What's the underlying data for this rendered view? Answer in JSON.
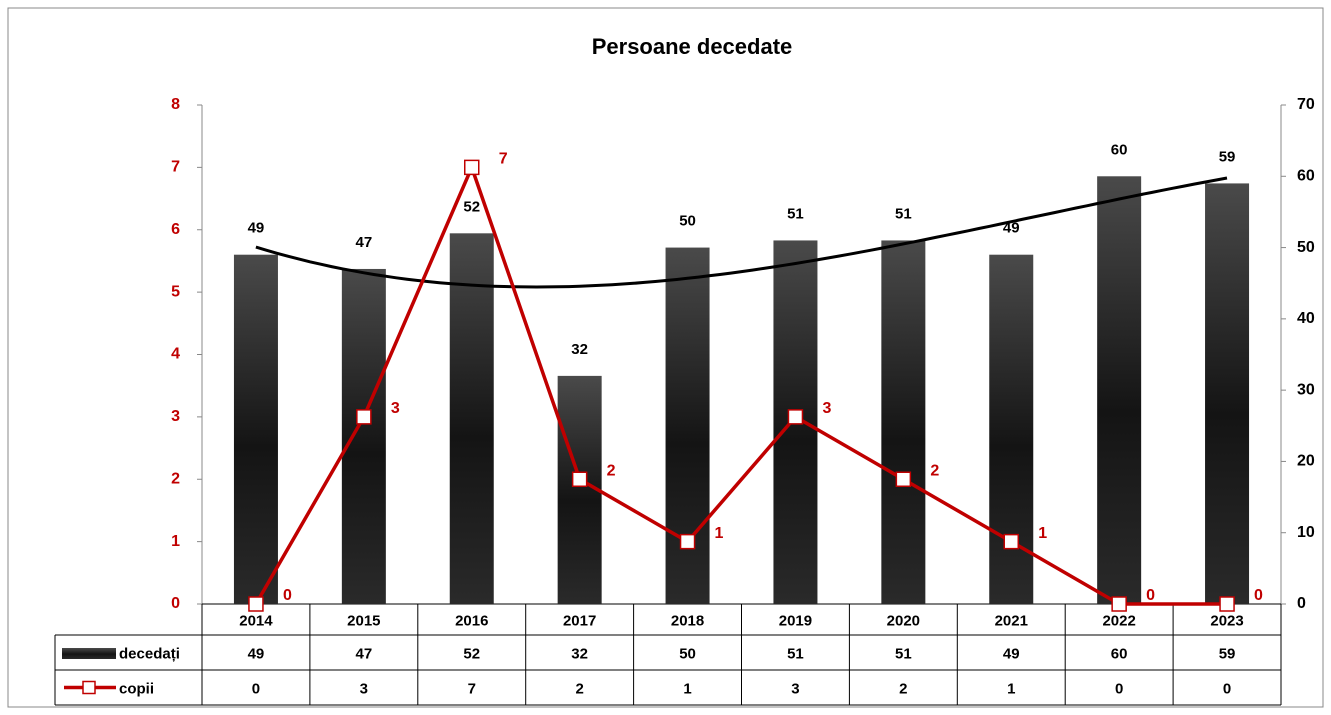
{
  "chart_data": {
    "type": "combo",
    "title": "Persoane decedate",
    "categories": [
      "2014",
      "2015",
      "2016",
      "2017",
      "2018",
      "2019",
      "2020",
      "2021",
      "2022",
      "2023"
    ],
    "series": [
      {
        "name": "decedați",
        "type": "bar",
        "axis": "y2",
        "color": "#1a1a1a",
        "trendline": true,
        "values": [
          49,
          47,
          52,
          32,
          50,
          51,
          51,
          49,
          60,
          59
        ]
      },
      {
        "name": "copii",
        "type": "line",
        "color": "#c00000",
        "values": [
          0,
          3,
          7,
          2,
          1,
          3,
          2,
          1,
          0,
          0
        ]
      }
    ],
    "ylim": [
      0,
      8
    ],
    "yticks": [
      0,
      1,
      2,
      3,
      4,
      5,
      6,
      7,
      8
    ],
    "y2lim": [
      0,
      70
    ],
    "y2ticks": [
      0,
      10,
      20,
      30,
      40,
      50,
      60,
      70
    ],
    "data_table": true
  }
}
